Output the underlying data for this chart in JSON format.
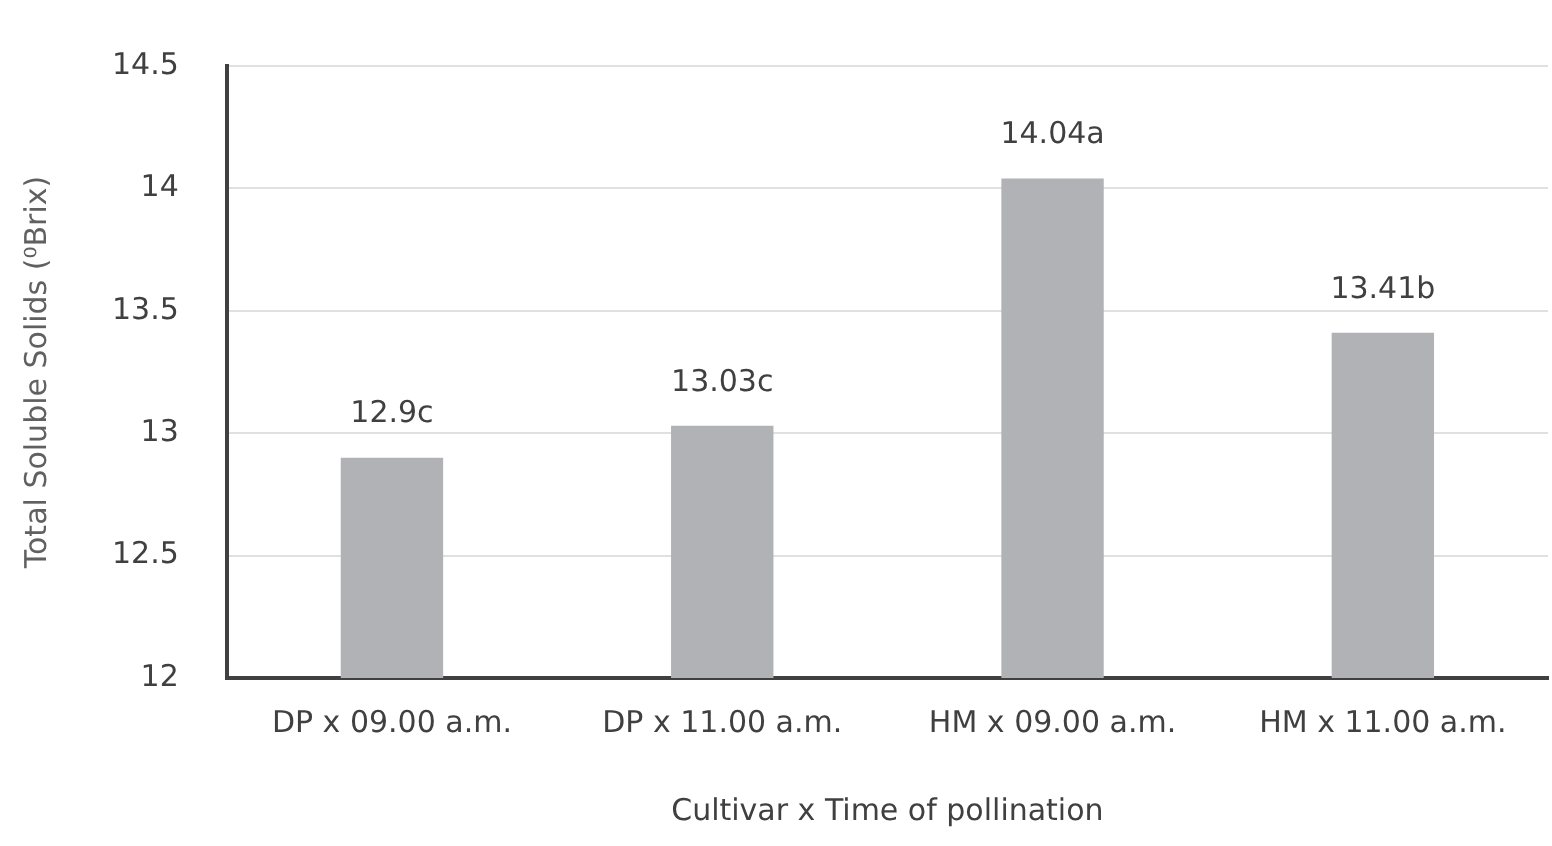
{
  "chart_data": {
    "type": "bar",
    "xlabel": "Cultivar x Time of pollination",
    "ylabel": "Total Soluble Solids (⁰Brix)",
    "categories": [
      "DP x 09.00 a.m.",
      "DP x 11.00 a.m.",
      "HM x 09.00 a.m.",
      "HM x 11.00 a.m."
    ],
    "values": [
      12.9,
      13.03,
      14.04,
      13.41
    ],
    "color": "#b1b2b6",
    "value_labels": [
      "12.9c",
      "13.03c",
      "14.04a",
      "13.41b"
    ],
    "ylim": [
      12,
      14.5
    ],
    "yticks": [
      12,
      12.5,
      13,
      13.5,
      14,
      14.5
    ],
    "grid": "y"
  }
}
